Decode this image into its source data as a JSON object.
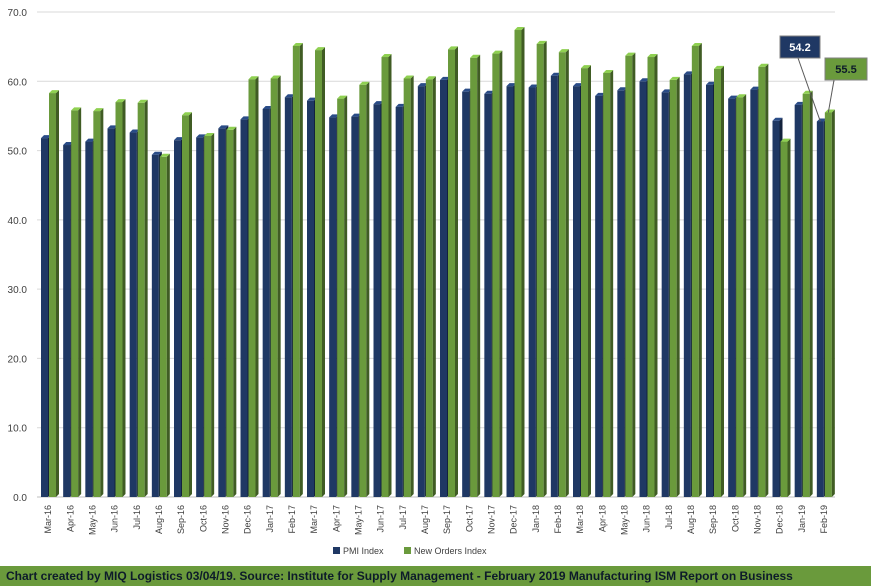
{
  "chart_data": {
    "type": "bar",
    "categories": [
      "Mar-16",
      "Apr-16",
      "May-16",
      "Jun-16",
      "Jul-16",
      "Aug-16",
      "Sep-16",
      "Oct-16",
      "Nov-16",
      "Dec-16",
      "Jan-17",
      "Feb-17",
      "Mar-17",
      "Apr-17",
      "May-17",
      "Jun-17",
      "Jul-17",
      "Aug-17",
      "Sep-17",
      "Oct-17",
      "Nov-17",
      "Dec-17",
      "Jan-18",
      "Feb-18",
      "Mar-18",
      "Apr-18",
      "May-18",
      "Jun-18",
      "Jul-18",
      "Aug-18",
      "Sep-18",
      "Oct-18",
      "Nov-18",
      "Dec-18",
      "Jan-19",
      "Feb-19"
    ],
    "series": [
      {
        "name": "PMI Index",
        "color": "#1f3864",
        "values": [
          51.8,
          50.8,
          51.3,
          53.2,
          52.6,
          49.4,
          51.5,
          51.9,
          53.2,
          54.5,
          56.0,
          57.7,
          57.2,
          54.8,
          54.9,
          56.7,
          56.3,
          59.3,
          60.2,
          58.5,
          58.2,
          59.3,
          59.1,
          60.8,
          59.3,
          57.9,
          58.7,
          60.0,
          58.4,
          61.0,
          59.5,
          57.5,
          58.8,
          54.3,
          56.6,
          54.2
        ]
      },
      {
        "name": "New Orders Index",
        "color": "#6a9a3c",
        "values": [
          58.3,
          55.8,
          55.7,
          57.0,
          56.9,
          49.1,
          55.1,
          52.1,
          53.0,
          60.3,
          60.4,
          65.1,
          64.5,
          57.5,
          59.5,
          63.5,
          60.4,
          60.3,
          64.6,
          63.4,
          64.0,
          67.4,
          65.4,
          64.2,
          61.9,
          61.2,
          63.7,
          63.5,
          60.2,
          65.1,
          61.8,
          57.7,
          62.1,
          51.3,
          58.2,
          55.5
        ]
      }
    ],
    "ylim": [
      0,
      70
    ],
    "yticks": [
      "0.0",
      "10.0",
      "20.0",
      "30.0",
      "40.0",
      "50.0",
      "60.0",
      "70.0"
    ],
    "grid": true,
    "legend": "bottom",
    "callouts": [
      {
        "series": 0,
        "label": "54.2",
        "box_color": "#1f3864",
        "text_color": "#ffffff"
      },
      {
        "series": 1,
        "label": "55.5",
        "box_color": "#6a9a3c",
        "text_color": "#0d1b2a"
      }
    ]
  },
  "footer": {
    "text": "Chart created by MIQ Logistics 03/04/19. Source: Institute for Supply Management - February 2019 Manufacturing ISM Report on Business"
  }
}
